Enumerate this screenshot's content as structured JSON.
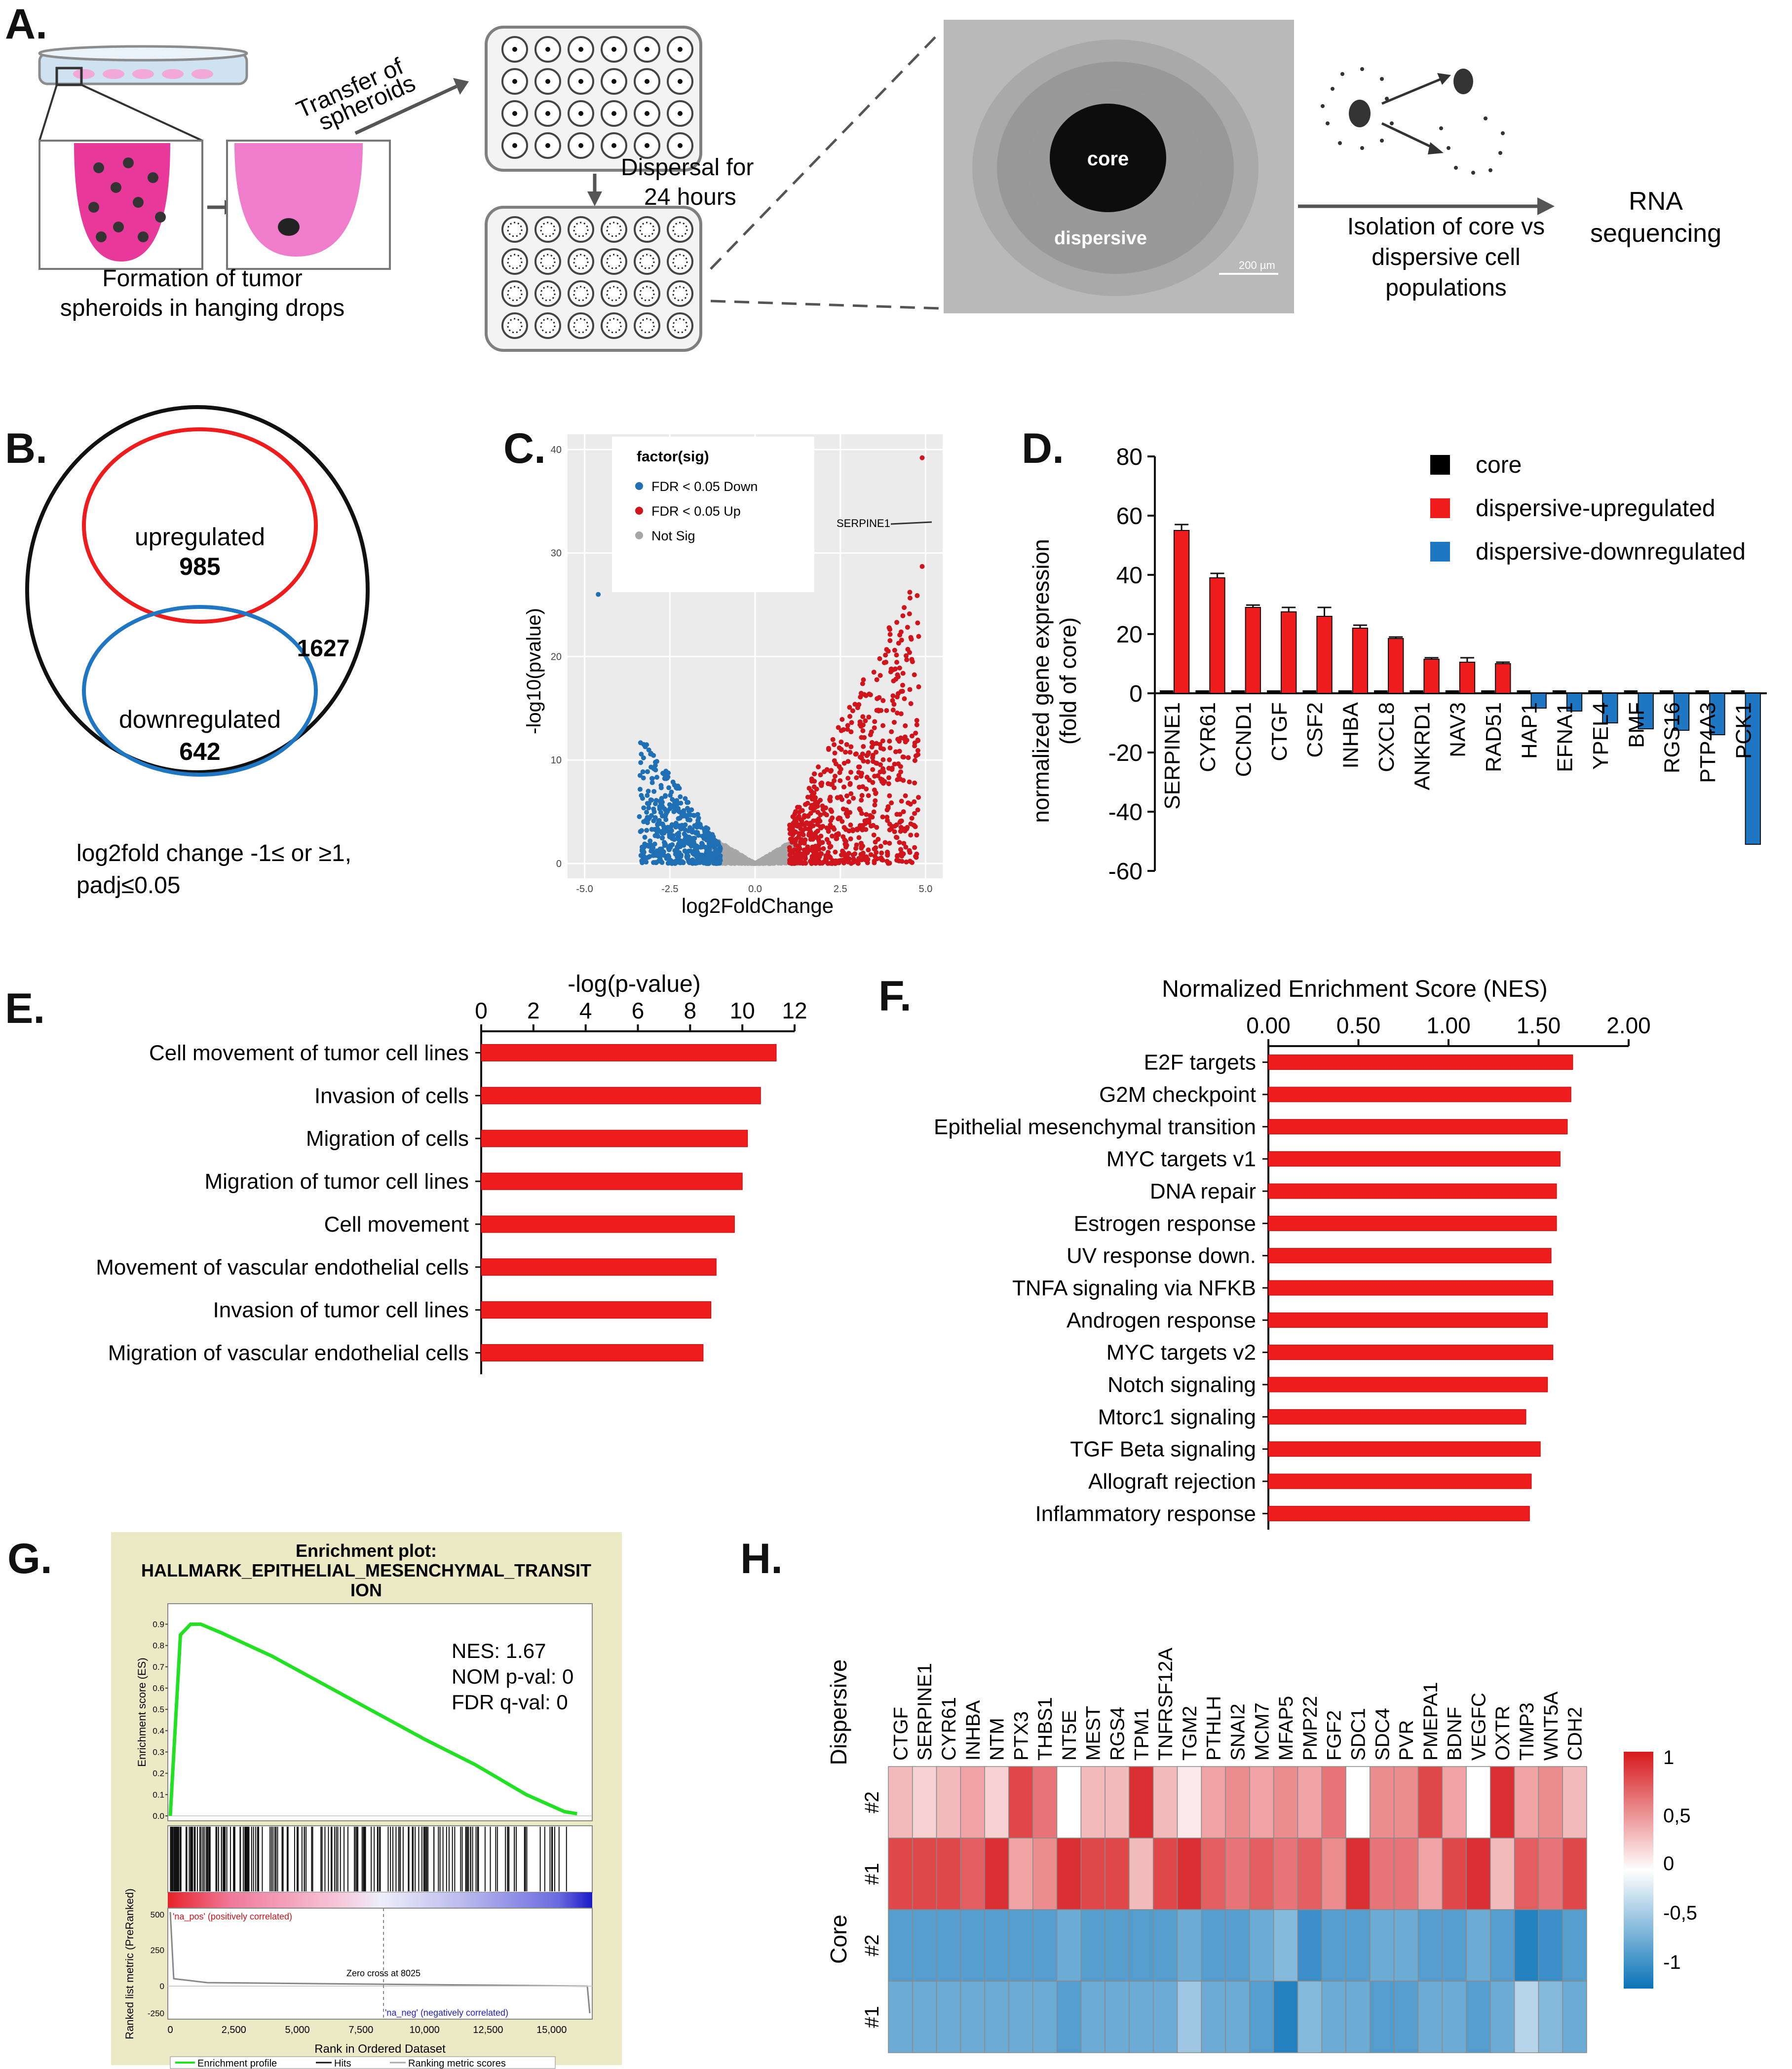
{
  "panelA": {
    "label": "A.",
    "transfer_line1": "Transfer of",
    "transfer_line2": "spheroids",
    "dispersal_line1": "Dispersal for",
    "dispersal_line2": "24 hours",
    "formation_line1": "Formation of tumor",
    "formation_line2": "spheroids in hanging drops",
    "core_label": "core",
    "dispersive_label": "dispersive",
    "scalebar_label": "200 µm",
    "isolation_line1": "Isolation of core vs",
    "isolation_line2": "dispersive cell",
    "isolation_line3": "populations",
    "rna_line1": "RNA",
    "rna_line2": "sequencing"
  },
  "panelB": {
    "label": "B.",
    "up_label": "upregulated",
    "up_count": "985",
    "down_label": "downregulated",
    "down_count": "642",
    "total_count": "1627",
    "criteria_line1": "log2fold  change -1≤ or ≥1,",
    "criteria_line2": "padj≤0.05"
  },
  "panelC": {
    "label": "C.",
    "ylabel": "-log10(pvalue)",
    "xlabel": "log2FoldChange",
    "legend_title": "factor(sig)",
    "legend_down": "FDR < 0.05 Down",
    "legend_up": "FDR < 0.05 Up",
    "legend_ns": "Not Sig",
    "annotation": "SERPINE1",
    "yticks": [
      "0",
      "10",
      "20",
      "30",
      "40"
    ],
    "xticks": [
      "-5.0",
      "-2.5",
      "0.0",
      "2.5",
      "5.0"
    ],
    "colors": {
      "down": "#1f6fb4",
      "up": "#d0141c",
      "ns": "#a6a6a6",
      "bg": "#ebebeb"
    }
  },
  "chart_data": [
    {
      "id": "D",
      "type": "bar",
      "label": "D.",
      "ylabel_line1": "normalized  gene expression",
      "ylabel_line2": "(fold of core)",
      "ylim": [
        -60,
        80
      ],
      "yticks": [
        "80",
        "60",
        "40",
        "20",
        "0",
        "-20",
        "-40",
        "-60"
      ],
      "legend": [
        "core",
        "dispersive-upregulated",
        "dispersive-downregulated"
      ],
      "categories": [
        "SERPINE1",
        "CYR61",
        "CCND1",
        "CTGF",
        "CSF2",
        "INHBA",
        "CXCL8",
        "ANKRD1",
        "NAV3",
        "RAD51",
        "HAP1",
        "EFNA1",
        "YPEL4",
        "BMF",
        "RGS16",
        "PTP4A3",
        "PCK1"
      ],
      "series": [
        {
          "name": "core",
          "values": [
            1,
            1,
            1,
            1,
            1,
            1,
            1,
            1,
            1,
            1,
            1,
            1,
            1,
            1,
            1,
            1,
            1
          ]
        },
        {
          "name": "dispersive",
          "values": [
            55,
            39,
            29,
            27.5,
            26,
            22,
            18.5,
            11.5,
            10.5,
            10,
            -5,
            -6,
            -10,
            -12,
            -12.5,
            -14,
            -51
          ]
        }
      ],
      "errors": [
        2,
        1.5,
        0.8,
        1.5,
        3,
        1,
        0.5,
        0.5,
        1.5,
        0.5,
        0.3,
        0.3,
        0.3,
        0.3,
        0.3,
        0.3,
        0.3
      ],
      "colors": {
        "core": "#000000",
        "up": "#ee1c1c",
        "down": "#1f77c4"
      }
    },
    {
      "id": "E",
      "type": "bar",
      "label": "E.",
      "title": "-log(p-value)",
      "xlim": [
        0,
        12
      ],
      "xticks": [
        "0",
        "2",
        "4",
        "6",
        "8",
        "10",
        "12"
      ],
      "categories": [
        "Cell movement of tumor cell lines",
        "Invasion of cells",
        "Migration of cells",
        "Migration of tumor cell lines",
        "Cell movement",
        "Movement of vascular endothelial cells",
        "Invasion of tumor cell lines",
        "Migration of vascular endothelial cells"
      ],
      "values": [
        11.3,
        10.7,
        10.2,
        10.0,
        9.7,
        9.0,
        8.8,
        8.5
      ],
      "color": "#ee1c1c"
    },
    {
      "id": "F",
      "type": "bar",
      "label": "F.",
      "title": "Normalized  Enrichment Score (NES)",
      "xlim": [
        0,
        2
      ],
      "xticks": [
        "0.00",
        "0.50",
        "1.00",
        "1.50",
        "2.00"
      ],
      "categories": [
        "E2F targets",
        "G2M  checkpoint",
        "Epithelial mesenchymal transition",
        "MYC targets v1",
        "DNA repair",
        "Estrogen response",
        "UV response down.",
        "TNFA signaling via NFKB",
        "Androgen response",
        "MYC targets v2",
        "Notch signaling",
        "Mtorc1 signaling",
        "TGF Beta signaling",
        "Allograft rejection",
        "Inflammatory response"
      ],
      "values": [
        1.69,
        1.68,
        1.66,
        1.62,
        1.6,
        1.6,
        1.57,
        1.58,
        1.55,
        1.58,
        1.55,
        1.43,
        1.51,
        1.46,
        1.45
      ],
      "color": "#ee1c1c"
    },
    {
      "id": "G",
      "type": "line",
      "label": "G.",
      "title_line1": "Enrichment plot:",
      "title_line2": "HALLMARK_EPITHELIAL_MESENCHYMAL_TRANSIT",
      "title_line3": "ION",
      "nes": "NES:  1.67",
      "nom_p": "NOM p-val: 0",
      "fdr_q": "FDR q-val: 0",
      "ylabel_es": "Enrichment score (ES)",
      "ylabel_rank": "Ranked list metric (PreRanked)",
      "xlabel": "Rank in Ordered Dataset",
      "es_yticks": [
        "0.9",
        "0.8",
        "0.7",
        "0.6",
        "0.5",
        "0.4",
        "0.3",
        "0.2",
        "0.1",
        "0.0"
      ],
      "rank_yticks": [
        "500",
        "250",
        "0",
        "-250"
      ],
      "xticks": [
        "0",
        "2,500",
        "5,000",
        "7,500",
        "10,000",
        "12,500",
        "15,000"
      ],
      "pos_label": "'na_pos' (positively correlated)",
      "neg_label": "'na_neg' (negatively correlated)",
      "zero_cross": "Zero cross at 8025",
      "legend": [
        "Enrichment profile",
        "Hits",
        "Ranking metric scores"
      ],
      "x": [
        0,
        400,
        800,
        1200,
        2000,
        4000,
        6000,
        8000,
        10000,
        12000,
        14000,
        15500,
        16000
      ],
      "es": [
        0.0,
        0.85,
        0.9,
        0.9,
        0.86,
        0.75,
        0.62,
        0.49,
        0.36,
        0.24,
        0.1,
        0.02,
        0.01
      ]
    },
    {
      "id": "H",
      "type": "heatmap",
      "label": "H.",
      "genes": [
        "CTGF",
        "SERPINE1",
        "CYR61",
        "INHBA",
        "NTM",
        "PTX3",
        "THBS1",
        "NT5E",
        "MEST",
        "RGS4",
        "TPM1",
        "TNFRSF12A",
        "TGM2",
        "PTHLH",
        "SNAI2",
        "MCM7",
        "MFAP5",
        "PMP22",
        "FGF2",
        "SDC1",
        "SDC4",
        "PVR",
        "PMEPA1",
        "BDNF",
        "VEGFC",
        "OXTR",
        "TIMP3",
        "WNT5A",
        "CDH2"
      ],
      "group_labels": [
        "Dispersive",
        "Core"
      ],
      "row_labels": [
        "#2",
        "#1",
        "#2",
        "#1"
      ],
      "scale_ticks": [
        "1",
        "0,5",
        "0",
        "-0,5",
        "-1"
      ],
      "values": [
        [
          0.3,
          0.2,
          0.3,
          0.4,
          0.2,
          0.8,
          0.6,
          0.0,
          0.3,
          0.3,
          0.9,
          0.3,
          0.1,
          0.4,
          0.5,
          0.4,
          0.5,
          0.4,
          0.6,
          0.0,
          0.5,
          0.5,
          0.8,
          0.4,
          0.0,
          0.9,
          0.4,
          0.5,
          0.3
        ],
        [
          0.8,
          0.8,
          0.8,
          0.7,
          0.9,
          0.4,
          0.5,
          0.9,
          0.8,
          0.8,
          0.3,
          0.8,
          0.9,
          0.7,
          0.6,
          0.7,
          0.6,
          0.7,
          0.5,
          0.9,
          0.6,
          0.6,
          0.4,
          0.8,
          0.9,
          0.3,
          0.7,
          0.6,
          0.8
        ],
        [
          -0.7,
          -0.7,
          -0.7,
          -0.7,
          -0.7,
          -0.7,
          -0.7,
          -0.6,
          -0.7,
          -0.7,
          -0.7,
          -0.7,
          -0.6,
          -0.7,
          -0.7,
          -0.6,
          -0.5,
          -0.8,
          -0.7,
          -0.7,
          -0.6,
          -0.6,
          -0.7,
          -0.7,
          -0.6,
          -0.7,
          -0.9,
          -0.8,
          -0.7
        ],
        [
          -0.6,
          -0.6,
          -0.6,
          -0.6,
          -0.6,
          -0.6,
          -0.6,
          -0.7,
          -0.6,
          -0.6,
          -0.6,
          -0.6,
          -0.4,
          -0.6,
          -0.6,
          -0.7,
          -0.9,
          -0.5,
          -0.6,
          -0.6,
          -0.7,
          -0.7,
          -0.6,
          -0.6,
          -0.7,
          -0.6,
          -0.3,
          -0.5,
          -0.6
        ]
      ]
    }
  ]
}
